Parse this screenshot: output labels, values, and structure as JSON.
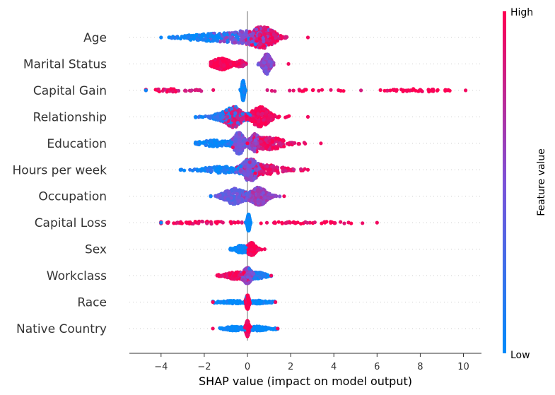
{
  "chart_data": {
    "type": "scatter",
    "subtype": "shap-beeswarm-summary",
    "xlabel": "SHAP value (impact on model output)",
    "xlim": [
      -5.5,
      10.8
    ],
    "xticks": [
      -4,
      -2,
      0,
      2,
      4,
      6,
      8,
      10
    ],
    "xtick_labels": [
      "−4",
      "−2",
      "0",
      "2",
      "4",
      "6",
      "8",
      "10"
    ],
    "features": [
      {
        "name": "Age",
        "min": -4.0,
        "max": 2.8,
        "modes": [
          {
            "c": -1.8,
            "s": 0.9,
            "w": 0.3,
            "v": 0.05,
            "amp": 0.35
          },
          {
            "c": -0.2,
            "s": 0.6,
            "w": 0.3,
            "v": 0.5,
            "amp": 0.5
          },
          {
            "c": 0.8,
            "s": 0.4,
            "w": 0.4,
            "v": 0.9,
            "amp": 0.95
          }
        ]
      },
      {
        "name": "Marital Status",
        "min": -1.7,
        "max": 1.9,
        "modes": [
          {
            "c": -1.2,
            "s": 0.35,
            "w": 0.4,
            "v": 1.0,
            "amp": 0.55
          },
          {
            "c": -0.3,
            "s": 0.15,
            "w": 0.1,
            "v": 0.9,
            "amp": 0.3
          },
          {
            "c": 0.9,
            "s": 0.15,
            "w": 0.5,
            "v": 0.55,
            "amp": 0.95
          }
        ]
      },
      {
        "name": "Capital Gain",
        "min": -4.7,
        "max": 10.1,
        "modes": [
          {
            "c": -0.2,
            "s": 0.04,
            "w": 0.8,
            "v": 0.0,
            "amp": 0.95
          },
          {
            "c": -3.5,
            "s": 0.8,
            "w": 0.07,
            "v": 0.9,
            "amp": 0.15
          },
          {
            "c": 3.0,
            "s": 1.5,
            "w": 0.05,
            "v": 0.95,
            "amp": 0.08
          },
          {
            "c": 7.8,
            "s": 1.0,
            "w": 0.08,
            "v": 1.0,
            "amp": 0.15
          }
        ]
      },
      {
        "name": "Relationship",
        "min": -2.4,
        "max": 2.8,
        "modes": [
          {
            "c": -1.0,
            "s": 0.5,
            "w": 0.25,
            "v": 0.15,
            "amp": 0.4
          },
          {
            "c": -0.6,
            "s": 0.25,
            "w": 0.25,
            "v": 0.85,
            "amp": 0.75
          },
          {
            "c": 0.6,
            "s": 0.35,
            "w": 0.5,
            "v": 0.95,
            "amp": 0.95
          }
        ]
      },
      {
        "name": "Education",
        "min": -2.4,
        "max": 3.4,
        "modes": [
          {
            "c": -1.5,
            "s": 0.6,
            "w": 0.2,
            "v": 0.05,
            "amp": 0.3
          },
          {
            "c": -0.4,
            "s": 0.18,
            "w": 0.35,
            "v": 0.45,
            "amp": 0.95
          },
          {
            "c": 0.3,
            "s": 0.15,
            "w": 0.15,
            "v": 0.6,
            "amp": 0.6
          },
          {
            "c": 1.0,
            "s": 0.6,
            "w": 0.3,
            "v": 0.9,
            "amp": 0.6
          }
        ]
      },
      {
        "name": "Hours per week",
        "min": -3.1,
        "max": 2.8,
        "modes": [
          {
            "c": -1.2,
            "s": 0.8,
            "w": 0.25,
            "v": 0.1,
            "amp": 0.3
          },
          {
            "c": 0.1,
            "s": 0.25,
            "w": 0.5,
            "v": 0.5,
            "amp": 0.9
          },
          {
            "c": 1.0,
            "s": 0.6,
            "w": 0.25,
            "v": 0.9,
            "amp": 0.45
          }
        ]
      },
      {
        "name": "Occupation",
        "min": -1.7,
        "max": 1.7,
        "modes": [
          {
            "c": -0.6,
            "s": 0.4,
            "w": 0.45,
            "v": 0.4,
            "amp": 0.75
          },
          {
            "c": 0.55,
            "s": 0.3,
            "w": 0.55,
            "v": 0.6,
            "amp": 0.85
          }
        ]
      },
      {
        "name": "Capital Loss",
        "min": -4.0,
        "max": 6.0,
        "modes": [
          {
            "c": 0.05,
            "s": 0.04,
            "w": 0.8,
            "v": 0.0,
            "amp": 0.75
          },
          {
            "c": -2.0,
            "s": 1.2,
            "w": 0.1,
            "v": 0.95,
            "amp": 0.12
          },
          {
            "c": 3.0,
            "s": 1.4,
            "w": 0.1,
            "v": 0.95,
            "amp": 0.12
          }
        ]
      },
      {
        "name": "Sex",
        "min": -0.8,
        "max": 0.8,
        "modes": [
          {
            "c": -0.3,
            "s": 0.2,
            "w": 0.5,
            "v": 0.0,
            "amp": 0.35
          },
          {
            "c": 0.2,
            "s": 0.15,
            "w": 0.5,
            "v": 1.0,
            "amp": 0.6
          }
        ]
      },
      {
        "name": "Workclass",
        "min": -1.4,
        "max": 1.1,
        "modes": [
          {
            "c": -0.5,
            "s": 0.4,
            "w": 0.25,
            "v": 0.95,
            "amp": 0.35
          },
          {
            "c": 0.0,
            "s": 0.12,
            "w": 0.5,
            "v": 0.55,
            "amp": 0.55
          },
          {
            "c": 0.5,
            "s": 0.3,
            "w": 0.25,
            "v": 0.1,
            "amp": 0.3
          }
        ]
      },
      {
        "name": "Race",
        "min": -1.6,
        "max": 1.3,
        "modes": [
          {
            "c": 0.0,
            "s": 0.05,
            "w": 0.6,
            "v": 1.0,
            "amp": 0.6
          },
          {
            "c": -0.6,
            "s": 0.4,
            "w": 0.2,
            "v": 0.0,
            "amp": 0.15
          },
          {
            "c": 0.5,
            "s": 0.3,
            "w": 0.2,
            "v": 0.0,
            "amp": 0.15
          }
        ]
      },
      {
        "name": "Native Country",
        "min": -1.6,
        "max": 1.4,
        "modes": [
          {
            "c": 0.0,
            "s": 0.05,
            "w": 0.6,
            "v": 1.0,
            "amp": 0.6
          },
          {
            "c": -0.6,
            "s": 0.4,
            "w": 0.2,
            "v": 0.0,
            "amp": 0.2
          },
          {
            "c": 0.5,
            "s": 0.35,
            "w": 0.2,
            "v": 0.0,
            "amp": 0.2
          }
        ]
      }
    ],
    "colorbar": {
      "high_label": "High",
      "low_label": "Low",
      "title": "Feature value",
      "low_color": "#008bfb",
      "mid_color": "#7c52d8",
      "high_color": "#ff0052"
    },
    "grid": false,
    "zero_line": true
  }
}
